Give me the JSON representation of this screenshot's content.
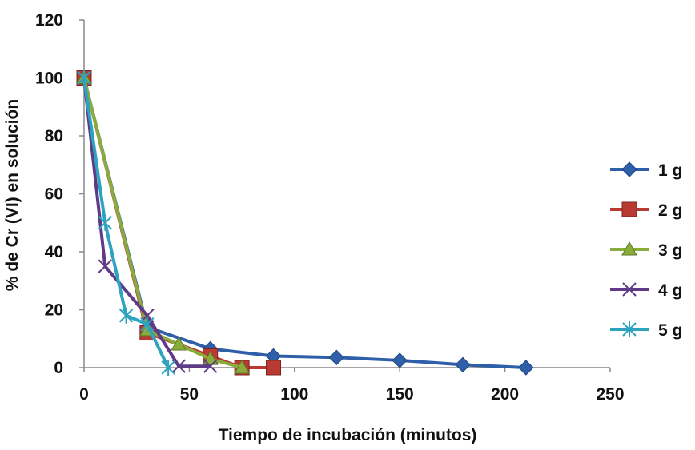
{
  "chart_data": {
    "type": "line",
    "xlabel": "Tiempo de incubación (minutos)",
    "ylabel": "% de Cr (VI) en solución",
    "xlim": [
      0,
      250
    ],
    "ylim": [
      0,
      120
    ],
    "xticks": [
      "0",
      "50",
      "100",
      "150",
      "200",
      "250"
    ],
    "yticks": [
      "0",
      "20",
      "40",
      "60",
      "80",
      "100",
      "120"
    ],
    "grid": false,
    "legend_position": "right",
    "series": [
      {
        "name": "1 g",
        "color": "#2e5fa8",
        "marker": "diamond",
        "points": [
          [
            0,
            100
          ],
          [
            30,
            14
          ],
          [
            60,
            6.5
          ],
          [
            90,
            4
          ],
          [
            120,
            3.5
          ],
          [
            150,
            2.5
          ],
          [
            180,
            1
          ],
          [
            210,
            0
          ]
        ]
      },
      {
        "name": "2 g",
        "color": "#b83a33",
        "marker": "square",
        "points": [
          [
            0,
            100
          ],
          [
            30,
            12
          ],
          [
            60,
            4
          ],
          [
            75,
            0
          ],
          [
            90,
            0
          ]
        ]
      },
      {
        "name": "3 g",
        "color": "#8aac3a",
        "marker": "triangle",
        "points": [
          [
            0,
            100
          ],
          [
            30,
            13
          ],
          [
            45,
            8
          ],
          [
            60,
            3
          ],
          [
            75,
            0
          ]
        ]
      },
      {
        "name": "4 g",
        "color": "#5e3a87",
        "marker": "x",
        "points": [
          [
            0,
            100
          ],
          [
            10,
            35
          ],
          [
            30,
            18
          ],
          [
            45,
            0.5
          ],
          [
            60,
            0.5
          ]
        ]
      },
      {
        "name": "5 g",
        "color": "#2ea3c0",
        "marker": "star",
        "points": [
          [
            0,
            100
          ],
          [
            10,
            50
          ],
          [
            20,
            18
          ],
          [
            30,
            15
          ],
          [
            40,
            0
          ]
        ]
      }
    ]
  }
}
